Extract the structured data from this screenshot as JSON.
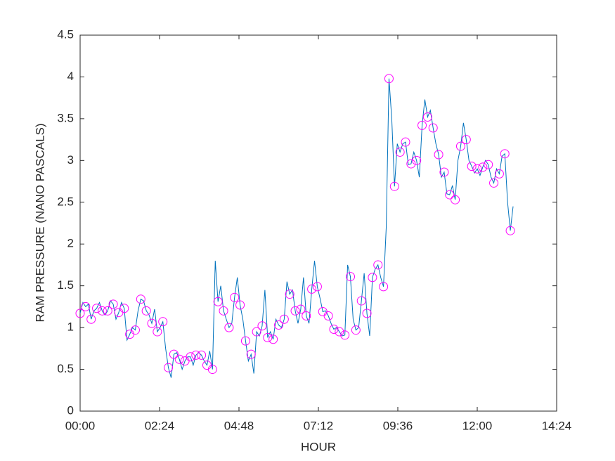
{
  "chart_data": {
    "type": "line",
    "xlabel": "HOUR",
    "ylabel": "RAM PRESSURE (NANO PASCALS)",
    "xlim": [
      0,
      864
    ],
    "xticks": [
      {
        "value": 0,
        "label": "00:00"
      },
      {
        "value": 144,
        "label": "02:24"
      },
      {
        "value": 288,
        "label": "04:48"
      },
      {
        "value": 432,
        "label": "07:12"
      },
      {
        "value": 576,
        "label": "09:36"
      },
      {
        "value": 720,
        "label": "12:00"
      },
      {
        "value": 864,
        "label": "14:24"
      }
    ],
    "ylim": [
      0,
      4.5
    ],
    "yticks": [
      0,
      0.5,
      1,
      1.5,
      2,
      2.5,
      3,
      3.5,
      4,
      4.5
    ],
    "grid": false,
    "series": [
      {
        "mode": "line",
        "color": "#0072bd",
        "x": [
          0,
          5,
          10,
          15,
          20,
          25,
          30,
          35,
          40,
          45,
          50,
          55,
          60,
          65,
          70,
          75,
          80,
          85,
          90,
          95,
          100,
          105,
          110,
          115,
          120,
          125,
          130,
          135,
          140,
          145,
          150,
          155,
          160,
          165,
          170,
          175,
          180,
          185,
          190,
          195,
          200,
          205,
          210,
          215,
          220,
          225,
          230,
          235,
          240,
          245,
          250,
          255,
          260,
          265,
          270,
          275,
          280,
          285,
          290,
          295,
          300,
          305,
          310,
          315,
          320,
          325,
          330,
          335,
          340,
          345,
          350,
          355,
          360,
          365,
          370,
          375,
          380,
          385,
          390,
          395,
          400,
          405,
          410,
          415,
          420,
          425,
          430,
          435,
          440,
          445,
          450,
          455,
          460,
          465,
          470,
          475,
          480,
          485,
          490,
          495,
          500,
          505,
          510,
          515,
          520,
          525,
          530,
          535,
          540,
          545,
          550,
          555,
          560,
          565,
          570,
          575,
          580,
          585,
          590,
          595,
          600,
          605,
          610,
          615,
          620,
          625,
          630,
          635,
          640,
          645,
          650,
          655,
          660,
          665,
          670,
          675,
          680,
          685,
          690,
          695,
          700,
          705,
          710,
          715,
          720,
          725,
          730,
          735,
          740,
          745,
          750,
          755,
          760,
          765,
          770,
          775,
          780,
          785
        ],
        "values": [
          1.17,
          1.3,
          1.25,
          1.28,
          1.1,
          1.2,
          1.23,
          1.3,
          1.2,
          1.15,
          1.2,
          1.32,
          1.28,
          1.1,
          1.18,
          1.3,
          1.23,
          0.85,
          0.92,
          1.0,
          0.97,
          1.2,
          1.34,
          1.32,
          1.2,
          1.15,
          1.05,
          1.22,
          0.95,
          1.0,
          1.07,
          0.75,
          0.52,
          0.4,
          0.68,
          0.7,
          0.62,
          0.5,
          0.6,
          0.65,
          0.65,
          0.55,
          0.67,
          0.7,
          0.67,
          0.6,
          0.55,
          0.72,
          0.5,
          1.8,
          1.31,
          1.5,
          1.2,
          1.1,
          1.0,
          1.05,
          1.36,
          1.6,
          1.27,
          1.1,
          0.84,
          0.6,
          0.68,
          0.45,
          0.95,
          0.9,
          1.02,
          1.45,
          0.88,
          0.95,
          0.86,
          1.1,
          1.03,
          1.0,
          1.1,
          1.55,
          1.4,
          1.45,
          1.2,
          1.05,
          1.22,
          1.6,
          1.14,
          1.05,
          1.46,
          1.8,
          1.49,
          1.35,
          1.19,
          1.2,
          1.14,
          1.05,
          0.98,
          1.0,
          0.95,
          0.9,
          0.91,
          1.75,
          1.61,
          1.1,
          0.97,
          1.0,
          1.32,
          1.65,
          1.17,
          0.9,
          1.6,
          1.7,
          1.75,
          1.6,
          1.49,
          2.2,
          3.98,
          3.5,
          2.69,
          3.2,
          3.1,
          3.2,
          3.22,
          2.95,
          2.96,
          3.1,
          3.0,
          2.8,
          3.42,
          3.73,
          3.52,
          3.6,
          3.39,
          3.2,
          3.07,
          2.8,
          2.86,
          2.6,
          2.59,
          2.7,
          2.53,
          3.0,
          3.17,
          3.45,
          3.25,
          3.0,
          2.93,
          2.85,
          2.9,
          2.82,
          2.92,
          3.0,
          2.95,
          2.8,
          2.73,
          2.9,
          2.84,
          3.05,
          3.08,
          2.5,
          2.16,
          2.45
        ]
      },
      {
        "mode": "markers",
        "color": "#ff00ff",
        "x": [
          0,
          10,
          20,
          30,
          40,
          50,
          60,
          70,
          80,
          90,
          100,
          110,
          120,
          130,
          140,
          150,
          160,
          170,
          180,
          190,
          200,
          210,
          220,
          230,
          240,
          250,
          260,
          270,
          280,
          290,
          300,
          310,
          320,
          330,
          340,
          350,
          360,
          370,
          380,
          390,
          400,
          410,
          420,
          430,
          440,
          450,
          460,
          470,
          480,
          490,
          500,
          510,
          520,
          530,
          540,
          550,
          560,
          570,
          580,
          590,
          600,
          610,
          620,
          630,
          640,
          650,
          660,
          670,
          680,
          690,
          700,
          710,
          720,
          730,
          740,
          750,
          760,
          770,
          780
        ],
        "values": [
          1.17,
          1.25,
          1.1,
          1.23,
          1.2,
          1.2,
          1.28,
          1.18,
          1.23,
          0.92,
          0.97,
          1.34,
          1.2,
          1.05,
          0.95,
          1.07,
          0.52,
          0.68,
          0.62,
          0.6,
          0.65,
          0.67,
          0.67,
          0.55,
          0.5,
          1.31,
          1.2,
          1.0,
          1.36,
          1.27,
          0.84,
          0.68,
          0.95,
          1.02,
          0.88,
          0.86,
          1.03,
          1.1,
          1.4,
          1.2,
          1.22,
          1.14,
          1.46,
          1.49,
          1.19,
          1.14,
          0.98,
          0.95,
          0.91,
          1.61,
          0.97,
          1.32,
          1.17,
          1.6,
          1.75,
          1.49,
          3.98,
          2.69,
          3.1,
          3.22,
          2.96,
          3.0,
          3.42,
          3.52,
          3.39,
          3.07,
          2.86,
          2.59,
          2.53,
          3.17,
          3.25,
          2.93,
          2.9,
          2.92,
          2.95,
          2.73,
          2.84,
          3.08,
          2.16
        ]
      }
    ]
  }
}
